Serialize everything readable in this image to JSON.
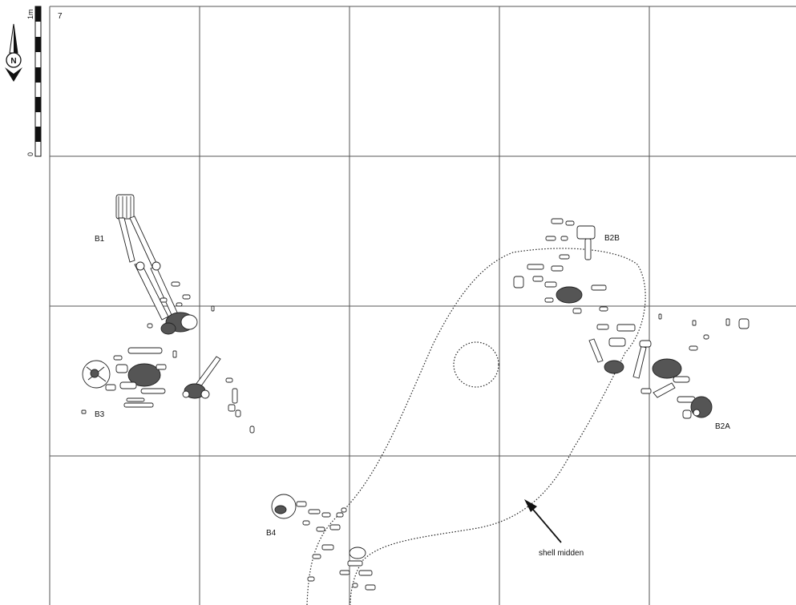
{
  "sheet_number": "7",
  "scale": {
    "top_label": "1m",
    "bottom_label": "0"
  },
  "north_arrow": {
    "letter": "N"
  },
  "burials": {
    "b1": "B1",
    "b2a": "B2A",
    "b2b": "B2B",
    "b3": "B3",
    "b4": "B4"
  },
  "features": {
    "shell_midden_label": "shell midden"
  }
}
